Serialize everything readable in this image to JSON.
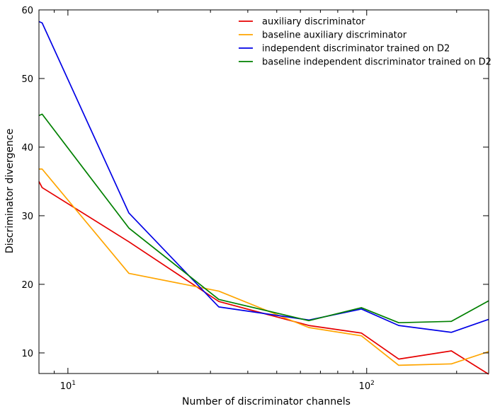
{
  "chart_data": {
    "type": "line",
    "xscale": "log",
    "xlabel": "Number of discriminator channels",
    "ylabel": "Discriminator divergence",
    "xlim": [
      8,
      256
    ],
    "ylim": [
      7,
      60
    ],
    "yticks": [
      10,
      20,
      30,
      40,
      50,
      60
    ],
    "xticks_major": [
      {
        "value": 10,
        "base": "10",
        "exp": "1"
      },
      {
        "value": 100,
        "base": "10",
        "exp": "2"
      }
    ],
    "legend_position": "top-right",
    "series": [
      {
        "name": "auxiliary discriminator",
        "color": "#e60000",
        "x": [
          8,
          8.2,
          16,
          32,
          64,
          96,
          128,
          192,
          256
        ],
        "y": [
          35.0,
          34.1,
          26.2,
          17.5,
          14.0,
          12.9,
          9.1,
          10.3,
          6.9
        ]
      },
      {
        "name": "baseline auxiliary discriminator",
        "color": "#ffa500",
        "x": [
          8,
          8.2,
          16,
          32,
          64,
          96,
          128,
          192,
          256
        ],
        "y": [
          36.8,
          36.8,
          21.6,
          19.0,
          13.7,
          12.5,
          8.2,
          8.4,
          10.2
        ]
      },
      {
        "name": "independent discriminator trained on D2",
        "color": "#0000e6",
        "x": [
          8,
          8.2,
          16,
          32,
          64,
          96,
          128,
          192,
          256
        ],
        "y": [
          58.3,
          58.1,
          30.4,
          16.7,
          14.8,
          16.4,
          14.0,
          13.0,
          14.9
        ]
      },
      {
        "name": "baseline independent discriminator trained on D2",
        "color": "#008000",
        "x": [
          8,
          8.2,
          16,
          32,
          64,
          96,
          128,
          192,
          256
        ],
        "y": [
          44.6,
          44.8,
          28.2,
          17.8,
          14.7,
          16.6,
          14.4,
          14.6,
          17.6
        ]
      }
    ]
  }
}
